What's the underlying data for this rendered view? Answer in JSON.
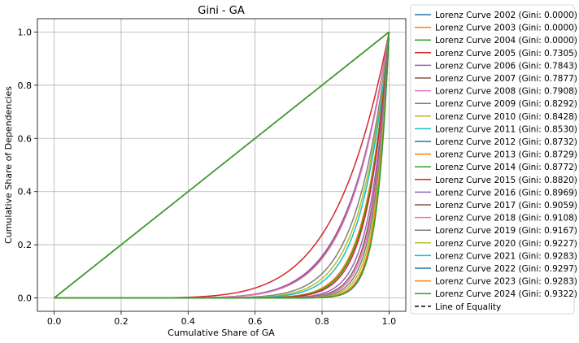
{
  "chart_data": {
    "type": "line",
    "title": "Gini - GA",
    "xlabel": "Cumulative Share of GA",
    "ylabel": "Cumulative Share of Dependencies",
    "xlim": [
      -0.05,
      1.05
    ],
    "ylim": [
      -0.05,
      1.05
    ],
    "xticks": [
      0.0,
      0.2,
      0.4,
      0.6,
      0.8,
      1.0
    ],
    "xtick_labels": [
      "0.0",
      "0.2",
      "0.4",
      "0.6",
      "0.8",
      "1.0"
    ],
    "yticks": [
      0.0,
      0.2,
      0.4,
      0.6,
      0.8,
      1.0
    ],
    "ytick_labels": [
      "0.0",
      "0.2",
      "0.4",
      "0.6",
      "0.8",
      "1.0"
    ],
    "grid": true,
    "legend_position": "outside-right",
    "series": [
      {
        "name": "Lorenz Curve 2002 (Gini: 0.0000)",
        "gini": 0.0,
        "color": "#1f77b4"
      },
      {
        "name": "Lorenz Curve 2003 (Gini: 0.0000)",
        "gini": 0.0,
        "color": "#ff7f0e"
      },
      {
        "name": "Lorenz Curve 2004 (Gini: 0.0000)",
        "gini": 0.0,
        "color": "#2ca02c"
      },
      {
        "name": "Lorenz Curve 2005 (Gini: 0.7305)",
        "gini": 0.7305,
        "color": "#d62728"
      },
      {
        "name": "Lorenz Curve 2006 (Gini: 0.7843)",
        "gini": 0.7843,
        "color": "#9467bd"
      },
      {
        "name": "Lorenz Curve 2007 (Gini: 0.7877)",
        "gini": 0.7877,
        "color": "#8c564b"
      },
      {
        "name": "Lorenz Curve 2008 (Gini: 0.7908)",
        "gini": 0.7908,
        "color": "#e377c2"
      },
      {
        "name": "Lorenz Curve 2009 (Gini: 0.8292)",
        "gini": 0.8292,
        "color": "#7f7f7f"
      },
      {
        "name": "Lorenz Curve 2010 (Gini: 0.8428)",
        "gini": 0.8428,
        "color": "#bcbd22"
      },
      {
        "name": "Lorenz Curve 2011 (Gini: 0.8530)",
        "gini": 0.853,
        "color": "#17becf"
      },
      {
        "name": "Lorenz Curve 2012 (Gini: 0.8732)",
        "gini": 0.8732,
        "color": "#1f77b4"
      },
      {
        "name": "Lorenz Curve 2013 (Gini: 0.8729)",
        "gini": 0.8729,
        "color": "#ff7f0e"
      },
      {
        "name": "Lorenz Curve 2014 (Gini: 0.8772)",
        "gini": 0.8772,
        "color": "#2ca02c"
      },
      {
        "name": "Lorenz Curve 2015 (Gini: 0.8820)",
        "gini": 0.882,
        "color": "#d62728"
      },
      {
        "name": "Lorenz Curve 2016 (Gini: 0.8969)",
        "gini": 0.8969,
        "color": "#9467bd"
      },
      {
        "name": "Lorenz Curve 2017 (Gini: 0.9059)",
        "gini": 0.9059,
        "color": "#8c564b"
      },
      {
        "name": "Lorenz Curve 2018 (Gini: 0.9108)",
        "gini": 0.9108,
        "color": "#e377c2"
      },
      {
        "name": "Lorenz Curve 2019 (Gini: 0.9167)",
        "gini": 0.9167,
        "color": "#7f7f7f"
      },
      {
        "name": "Lorenz Curve 2020 (Gini: 0.9227)",
        "gini": 0.9227,
        "color": "#bcbd22"
      },
      {
        "name": "Lorenz Curve 2021 (Gini: 0.9283)",
        "gini": 0.9283,
        "color": "#17becf"
      },
      {
        "name": "Lorenz Curve 2022 (Gini: 0.9297)",
        "gini": 0.9297,
        "color": "#1f77b4"
      },
      {
        "name": "Lorenz Curve 2023 (Gini: 0.9283)",
        "gini": 0.9283,
        "color": "#ff7f0e"
      },
      {
        "name": "Lorenz Curve 2024 (Gini: 0.9322)",
        "gini": 0.9322,
        "color": "#2ca02c"
      }
    ],
    "equality_line": {
      "name": "Line of Equality",
      "x": [
        0,
        1
      ],
      "y": [
        0,
        1
      ],
      "color": "#000000",
      "style": "dashed"
    }
  }
}
